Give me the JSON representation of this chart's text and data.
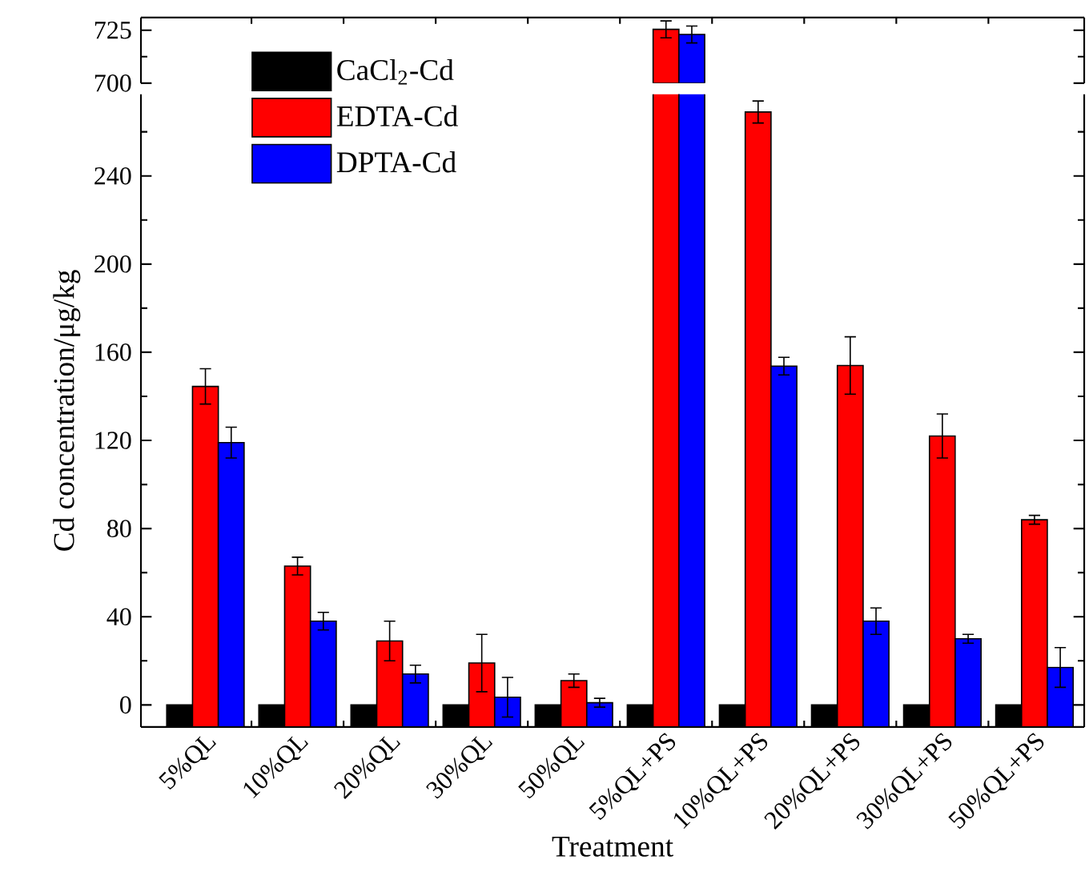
{
  "chart_data": [
    {
      "type": "bar",
      "categories": [
        null,
        null,
        null,
        null,
        null,
        null,
        null,
        null,
        null,
        null
      ],
      "series": [
        {
          "color": "#ff0000",
          "base": [
            null,
            null,
            null,
            null,
            null,
            700,
            null,
            null,
            null,
            null
          ],
          "values": [
            null,
            null,
            null,
            null,
            null,
            25.4,
            null,
            null,
            null,
            null
          ],
          "errors": [
            null,
            null,
            null,
            null,
            null,
            4,
            null,
            null,
            null,
            null
          ]
        },
        {
          "color": "#0000ff",
          "base": [
            null,
            null,
            null,
            null,
            null,
            700,
            null,
            null,
            null,
            null
          ],
          "values": [
            null,
            null,
            null,
            null,
            null,
            23,
            null,
            null,
            null,
            null
          ],
          "errors": [
            null,
            null,
            null,
            null,
            null,
            4,
            null,
            null,
            null,
            null
          ]
        }
      ],
      "ylim": [
        700,
        731
      ],
      "yticks": [
        700,
        {
          "value": 712.5,
          "label": null
        },
        725
      ],
      "tick_labels": "y"
    },
    {
      "type": "bar",
      "xlabel": "Treatment",
      "ylabel": "Cd concentration/μg/kg",
      "legend": "top left",
      "categories": [
        "5%QL",
        "10%QL",
        "20%QL",
        "30%QL",
        "50%QL",
        "5%QL+PS",
        "10%QL+PS",
        "20%QL+PS",
        "30%QL+PS",
        "50%QL+PS"
      ],
      "series": [
        {
          "name": "CaCl$_{2}$-Cd",
          "color": "#000000",
          "base": [
            -10,
            -10,
            -10,
            -10,
            -10,
            -10,
            -10,
            -10,
            -10,
            -10
          ],
          "values": [
            10,
            10,
            10,
            10,
            10,
            10,
            10,
            10,
            10,
            10
          ]
        },
        {
          "name": "EDTA-Cd",
          "color": "#ff0000",
          "base": [
            -10,
            -10,
            -10,
            -10,
            -10,
            -10,
            -10,
            -10,
            -10,
            -10
          ],
          "values": [
            154.5,
            73,
            39,
            29,
            21,
            735.4,
            279,
            164,
            132,
            94
          ],
          "errors": [
            8,
            4,
            9,
            13,
            3,
            null,
            5,
            13,
            10,
            2
          ]
        },
        {
          "name": "DPTA-Cd",
          "color": "#0000ff",
          "base": [
            -10,
            -10,
            -10,
            -10,
            -10,
            -10,
            -10,
            -10,
            -10,
            -10
          ],
          "values": [
            129,
            48,
            24,
            13.5,
            11,
            733,
            163.7,
            48,
            40,
            27
          ],
          "errors": [
            7,
            4,
            4,
            9,
            2,
            null,
            4,
            6,
            2,
            9
          ]
        }
      ],
      "ylim": [
        -10,
        277
      ],
      "yticks": [
        0,
        {
          "value": 20,
          "label": null
        },
        40,
        {
          "value": 60,
          "label": null
        },
        80,
        {
          "value": 100,
          "label": null
        },
        120,
        {
          "value": 140,
          "label": null
        },
        160,
        {
          "value": 180,
          "label": null
        },
        200,
        {
          "value": 220,
          "label": null
        },
        240,
        {
          "value": 260,
          "label": null
        }
      ]
    }
  ]
}
